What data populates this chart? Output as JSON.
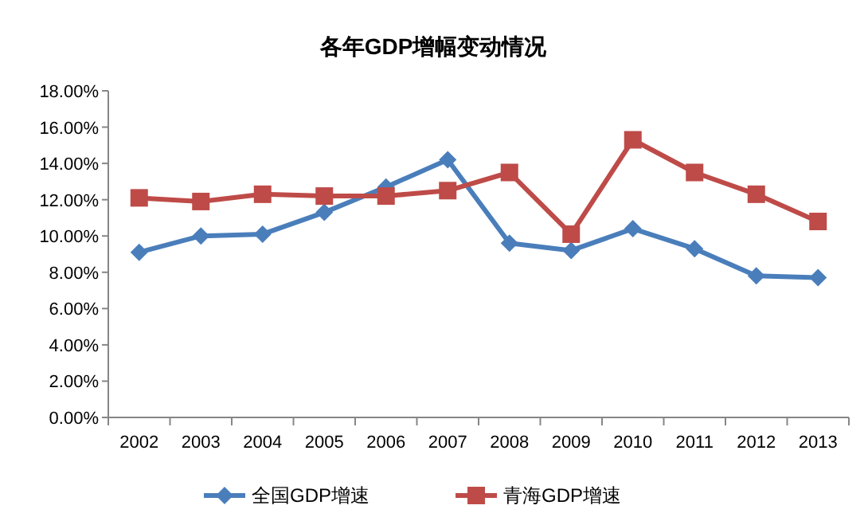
{
  "chart_data": {
    "type": "line",
    "title": "各年GDP增幅变动情况",
    "categories": [
      "2002",
      "2003",
      "2004",
      "2005",
      "2006",
      "2007",
      "2008",
      "2009",
      "2010",
      "2011",
      "2012",
      "2013"
    ],
    "series": [
      {
        "name": "全国GDP增速",
        "color": "#4a7ebb",
        "marker": "diamond",
        "values": [
          9.1,
          10.0,
          10.1,
          11.3,
          12.7,
          14.2,
          9.6,
          9.2,
          10.4,
          9.3,
          7.8,
          7.7
        ]
      },
      {
        "name": "青海GDP增速",
        "color": "#be4b48",
        "marker": "square",
        "values": [
          12.1,
          11.9,
          12.3,
          12.2,
          12.2,
          12.5,
          13.5,
          10.1,
          15.3,
          13.5,
          12.3,
          10.8
        ]
      }
    ],
    "ylim": [
      0,
      18
    ],
    "yticks": [
      {
        "value": 0,
        "label": "0.00%"
      },
      {
        "value": 2,
        "label": "2.00%"
      },
      {
        "value": 4,
        "label": "4.00%"
      },
      {
        "value": 6,
        "label": "6.00%"
      },
      {
        "value": 8,
        "label": "8.00%"
      },
      {
        "value": 10,
        "label": "10.00%"
      },
      {
        "value": 12,
        "label": "12.00%"
      },
      {
        "value": 14,
        "label": "14.00%"
      },
      {
        "value": 16,
        "label": "16.00%"
      },
      {
        "value": 18,
        "label": "18.00%"
      }
    ],
    "grid": false,
    "legend": "bottom",
    "line_style": "solid"
  }
}
